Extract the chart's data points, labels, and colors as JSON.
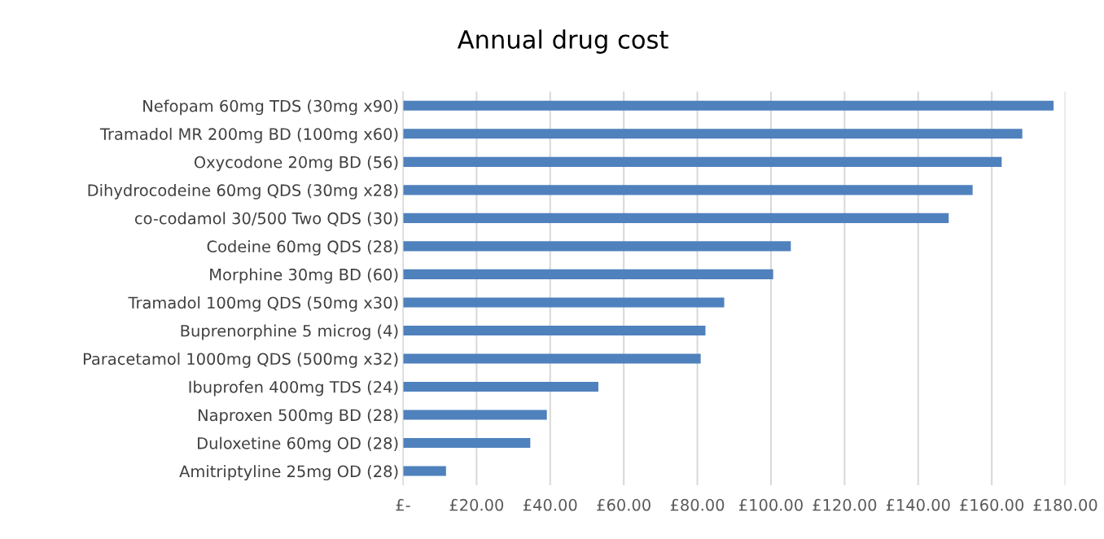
{
  "chart_data": {
    "type": "bar",
    "orientation": "horizontal",
    "title": "Annual drug cost",
    "categories": [
      "Nefopam 60mg TDS (30mg x90)",
      "Tramadol MR 200mg BD (100mg x60)",
      "Oxycodone 20mg BD (56)",
      "Dihydrocodeine 60mg QDS (30mg x28)",
      "co-codamol 30/500 Two QDS (30)",
      "Codeine 60mg QDS (28)",
      "Morphine 30mg BD (60)",
      "Tramadol 100mg QDS (50mg x30)",
      "Buprenorphine 5 microg (4)",
      "Paracetamol 1000mg QDS (500mg x32)",
      "Ibuprofen 400mg TDS (24)",
      "Naproxen 500mg BD (28)",
      "Duloxetine 60mg OD (28)",
      "Amitriptyline 25mg OD (28)"
    ],
    "values": [
      176.8,
      168.3,
      162.7,
      154.8,
      148.3,
      105.4,
      100.6,
      87.3,
      82.2,
      80.9,
      53.1,
      39.1,
      34.6,
      11.7
    ],
    "color": "#4f81bd",
    "xlim": [
      0,
      180
    ],
    "xticks": [
      {
        "value": 0,
        "label": "£-"
      },
      {
        "value": 20,
        "label": "£20.00"
      },
      {
        "value": 40,
        "label": "£40.00"
      },
      {
        "value": 60,
        "label": "£60.00"
      },
      {
        "value": 80,
        "label": "£80.00"
      },
      {
        "value": 100,
        "label": "£100.00"
      },
      {
        "value": 120,
        "label": "£120.00"
      },
      {
        "value": 140,
        "label": "£140.00"
      },
      {
        "value": 160,
        "label": "£160.00"
      },
      {
        "value": 180,
        "label": "£180.00"
      }
    ],
    "grid": "x",
    "legend": false
  }
}
